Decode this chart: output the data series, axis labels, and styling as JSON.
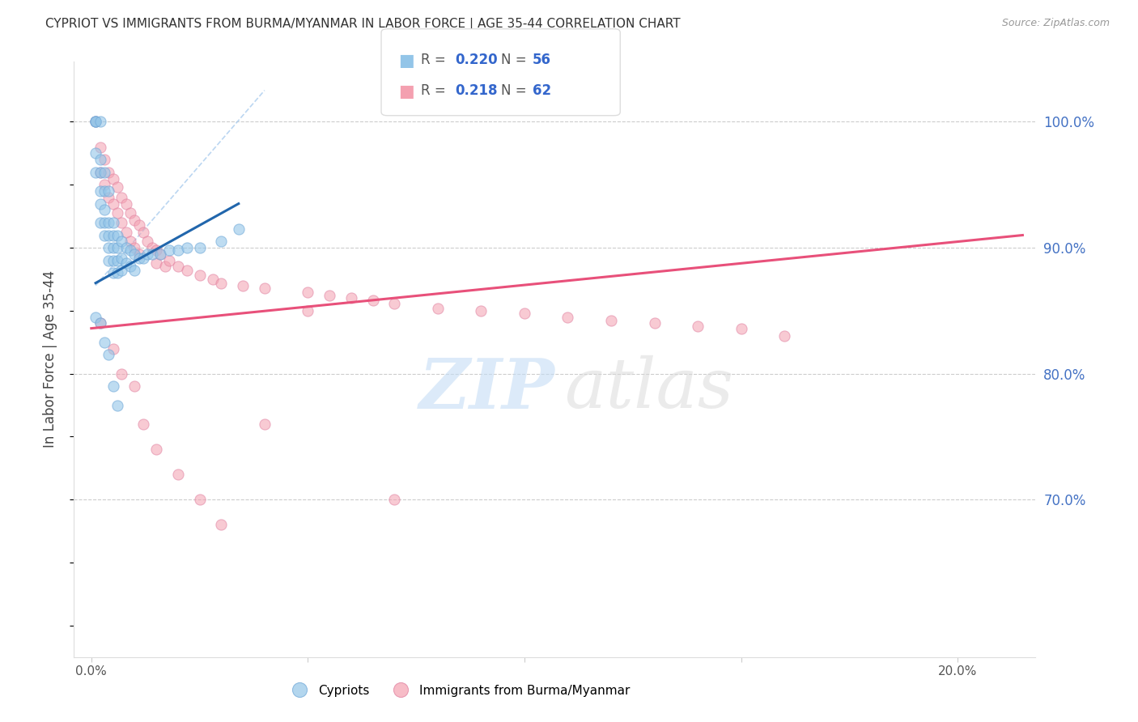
{
  "title": "CYPRIOT VS IMMIGRANTS FROM BURMA/MYANMAR IN LABOR FORCE | AGE 35-44 CORRELATION CHART",
  "source": "Source: ZipAtlas.com",
  "ylabel": "In Labor Force | Age 35-44",
  "x_ticks": [
    0.0,
    0.05,
    0.1,
    0.15,
    0.2
  ],
  "x_tick_labels": [
    "0.0%",
    "",
    "",
    "",
    "20.0%"
  ],
  "y_tick_right_labels": [
    "70.0%",
    "80.0%",
    "90.0%",
    "100.0%"
  ],
  "y_tick_right_values": [
    0.7,
    0.8,
    0.9,
    1.0
  ],
  "xlim": [
    -0.004,
    0.218
  ],
  "ylim": [
    0.575,
    1.048
  ],
  "blue_color": "#93c5e8",
  "pink_color": "#f4a0b0",
  "trend_blue": "#2166ac",
  "trend_pink": "#e8507a",
  "watermark_zip_color": "#c5ddf5",
  "watermark_atlas_color": "#d8d8d8",
  "cypriot_x": [
    0.001,
    0.001,
    0.001,
    0.001,
    0.001,
    0.002,
    0.002,
    0.002,
    0.002,
    0.002,
    0.002,
    0.003,
    0.003,
    0.003,
    0.003,
    0.003,
    0.004,
    0.004,
    0.004,
    0.004,
    0.004,
    0.005,
    0.005,
    0.005,
    0.005,
    0.005,
    0.006,
    0.006,
    0.006,
    0.006,
    0.007,
    0.007,
    0.007,
    0.008,
    0.008,
    0.009,
    0.009,
    0.01,
    0.01,
    0.011,
    0.012,
    0.013,
    0.014,
    0.016,
    0.018,
    0.02,
    0.022,
    0.025,
    0.03,
    0.034,
    0.001,
    0.002,
    0.003,
    0.004,
    0.005,
    0.006
  ],
  "cypriot_y": [
    1.0,
    1.0,
    1.0,
    0.975,
    0.96,
    1.0,
    0.97,
    0.96,
    0.945,
    0.935,
    0.92,
    0.96,
    0.945,
    0.93,
    0.92,
    0.91,
    0.945,
    0.92,
    0.91,
    0.9,
    0.89,
    0.92,
    0.91,
    0.9,
    0.89,
    0.88,
    0.91,
    0.9,
    0.89,
    0.88,
    0.905,
    0.892,
    0.882,
    0.9,
    0.888,
    0.898,
    0.885,
    0.895,
    0.882,
    0.892,
    0.892,
    0.895,
    0.895,
    0.895,
    0.898,
    0.898,
    0.9,
    0.9,
    0.905,
    0.915,
    0.845,
    0.84,
    0.825,
    0.815,
    0.79,
    0.775
  ],
  "burma_x": [
    0.001,
    0.002,
    0.002,
    0.003,
    0.003,
    0.004,
    0.004,
    0.005,
    0.005,
    0.006,
    0.006,
    0.007,
    0.007,
    0.008,
    0.008,
    0.009,
    0.009,
    0.01,
    0.01,
    0.011,
    0.011,
    0.012,
    0.013,
    0.014,
    0.015,
    0.015,
    0.016,
    0.017,
    0.018,
    0.02,
    0.022,
    0.025,
    0.028,
    0.03,
    0.035,
    0.04,
    0.05,
    0.055,
    0.06,
    0.065,
    0.07,
    0.08,
    0.09,
    0.1,
    0.11,
    0.12,
    0.13,
    0.14,
    0.15,
    0.002,
    0.005,
    0.007,
    0.01,
    0.012,
    0.015,
    0.02,
    0.025,
    0.03,
    0.04,
    0.05,
    0.07,
    0.16
  ],
  "burma_y": [
    1.0,
    0.98,
    0.96,
    0.97,
    0.95,
    0.96,
    0.94,
    0.955,
    0.935,
    0.948,
    0.928,
    0.94,
    0.92,
    0.935,
    0.912,
    0.928,
    0.905,
    0.922,
    0.9,
    0.918,
    0.895,
    0.912,
    0.905,
    0.9,
    0.898,
    0.888,
    0.895,
    0.885,
    0.89,
    0.885,
    0.882,
    0.878,
    0.875,
    0.872,
    0.87,
    0.868,
    0.865,
    0.862,
    0.86,
    0.858,
    0.856,
    0.852,
    0.85,
    0.848,
    0.845,
    0.842,
    0.84,
    0.838,
    0.836,
    0.84,
    0.82,
    0.8,
    0.79,
    0.76,
    0.74,
    0.72,
    0.7,
    0.68,
    0.76,
    0.85,
    0.7,
    0.83
  ],
  "blue_trend_x": [
    0.001,
    0.034
  ],
  "blue_trend_y": [
    0.872,
    0.935
  ],
  "pink_trend_x": [
    0.0,
    0.215
  ],
  "pink_trend_y": [
    0.836,
    0.91
  ],
  "ref_line_x": [
    0.001,
    0.04
  ],
  "ref_line_y": [
    0.87,
    1.025
  ]
}
